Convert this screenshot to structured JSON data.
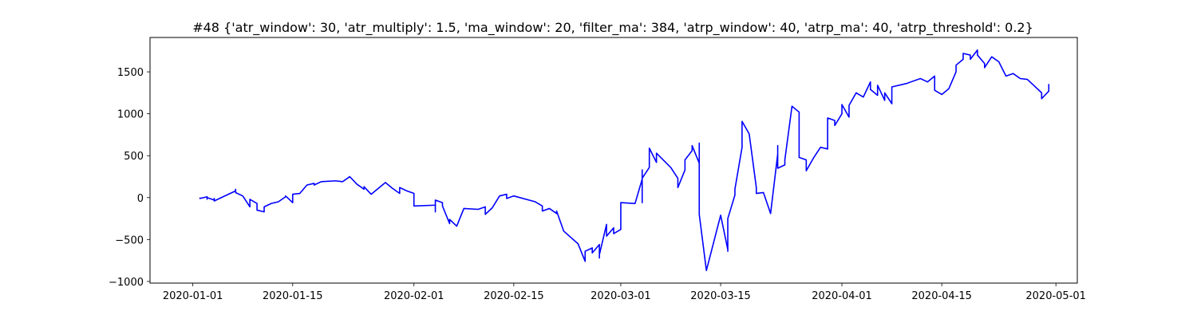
{
  "chart_data": {
    "type": "line",
    "title": "#48 {'atr_window': 30, 'atr_multiply': 1.5, 'ma_window': 20, 'filter_ma': 384, 'atrp_window': 40, 'atrp_ma': 40, 'atrp_threshold': 0.2}",
    "xlabel": "",
    "ylabel": "",
    "grid": false,
    "legend": "none",
    "xlim": [
      "2019-12-26",
      "2020-05-04"
    ],
    "ylim": [
      -1020,
      1910
    ],
    "x_tick_labels": [
      "2020-01-01",
      "2020-01-15",
      "2020-02-01",
      "2020-02-15",
      "2020-03-01",
      "2020-03-15",
      "2020-04-01",
      "2020-04-15",
      "2020-05-01"
    ],
    "y_ticks": [
      -1000,
      -500,
      0,
      500,
      1000,
      1500
    ],
    "y_tick_labels": [
      "−1000",
      "−500",
      "0",
      "500",
      "1000",
      "1500"
    ],
    "series": [
      {
        "color": "#0000ff",
        "points": [
          [
            "2020-01-02",
            0
          ],
          [
            "2020-01-02",
            -10
          ],
          [
            "2020-01-03",
            10
          ],
          [
            "2020-01-03",
            -20
          ],
          [
            "2020-01-03",
            0
          ],
          [
            "2020-01-04",
            -30
          ],
          [
            "2020-01-04",
            -10
          ],
          [
            "2020-01-04",
            -40
          ],
          [
            "2020-01-05",
            0
          ],
          [
            "2020-01-07",
            80
          ],
          [
            "2020-01-07",
            100
          ],
          [
            "2020-01-07",
            60
          ],
          [
            "2020-01-08",
            20
          ],
          [
            "2020-01-09",
            -110
          ],
          [
            "2020-01-09",
            -20
          ],
          [
            "2020-01-10",
            -70
          ],
          [
            "2020-01-10",
            -150
          ],
          [
            "2020-01-11",
            -170
          ],
          [
            "2020-01-11",
            -110
          ],
          [
            "2020-01-12",
            -70
          ],
          [
            "2020-01-13",
            -50
          ],
          [
            "2020-01-14",
            10
          ],
          [
            "2020-01-14",
            20
          ],
          [
            "2020-01-15",
            -60
          ],
          [
            "2020-01-15",
            40
          ],
          [
            "2020-01-16",
            50
          ],
          [
            "2020-01-17",
            150
          ],
          [
            "2020-01-18",
            170
          ],
          [
            "2020-01-18",
            150
          ],
          [
            "2020-01-19",
            190
          ],
          [
            "2020-01-21",
            200
          ],
          [
            "2020-01-22",
            190
          ],
          [
            "2020-01-23",
            250
          ],
          [
            "2020-01-24",
            160
          ],
          [
            "2020-01-25",
            100
          ],
          [
            "2020-01-25",
            130
          ],
          [
            "2020-01-26",
            40
          ],
          [
            "2020-01-28",
            180
          ],
          [
            "2020-01-29",
            110
          ],
          [
            "2020-01-30",
            50
          ],
          [
            "2020-01-30",
            120
          ],
          [
            "2020-01-31",
            80
          ],
          [
            "2020-02-01",
            50
          ],
          [
            "2020-02-01",
            -100
          ],
          [
            "2020-02-04",
            -90
          ],
          [
            "2020-02-04",
            -170
          ],
          [
            "2020-02-04",
            -30
          ],
          [
            "2020-02-05",
            -60
          ],
          [
            "2020-02-05",
            -100
          ],
          [
            "2020-02-06",
            -310
          ],
          [
            "2020-02-06",
            -260
          ],
          [
            "2020-02-07",
            -340
          ],
          [
            "2020-02-08",
            -130
          ],
          [
            "2020-02-10",
            -140
          ],
          [
            "2020-02-11",
            -110
          ],
          [
            "2020-02-11",
            -200
          ],
          [
            "2020-02-12",
            -120
          ],
          [
            "2020-02-13",
            20
          ],
          [
            "2020-02-14",
            40
          ],
          [
            "2020-02-14",
            -10
          ],
          [
            "2020-02-15",
            20
          ],
          [
            "2020-02-18",
            -50
          ],
          [
            "2020-02-19",
            -100
          ],
          [
            "2020-02-19",
            -160
          ],
          [
            "2020-02-20",
            -130
          ],
          [
            "2020-02-21",
            -190
          ],
          [
            "2020-02-21",
            -160
          ],
          [
            "2020-02-22",
            -400
          ],
          [
            "2020-02-24",
            -550
          ],
          [
            "2020-02-25",
            -760
          ],
          [
            "2020-02-25",
            -640
          ],
          [
            "2020-02-26",
            -600
          ],
          [
            "2020-02-26",
            -660
          ],
          [
            "2020-02-27",
            -560
          ],
          [
            "2020-02-27",
            -720
          ],
          [
            "2020-02-27",
            -680
          ],
          [
            "2020-02-28",
            -320
          ],
          [
            "2020-02-28",
            -460
          ],
          [
            "2020-02-29",
            -360
          ],
          [
            "2020-02-29",
            -430
          ],
          [
            "2020-03-01",
            -380
          ],
          [
            "2020-03-01",
            -60
          ],
          [
            "2020-03-03",
            -70
          ],
          [
            "2020-03-04",
            220
          ],
          [
            "2020-03-04",
            330
          ],
          [
            "2020-03-04",
            -60
          ],
          [
            "2020-03-04",
            230
          ],
          [
            "2020-03-05",
            360
          ],
          [
            "2020-03-05",
            380
          ],
          [
            "2020-03-05",
            590
          ],
          [
            "2020-03-06",
            420
          ],
          [
            "2020-03-06",
            530
          ],
          [
            "2020-03-08",
            360
          ],
          [
            "2020-03-09",
            230
          ],
          [
            "2020-03-09",
            120
          ],
          [
            "2020-03-10",
            330
          ],
          [
            "2020-03-10",
            450
          ],
          [
            "2020-03-11",
            560
          ],
          [
            "2020-03-11",
            620
          ],
          [
            "2020-03-12",
            410
          ],
          [
            "2020-03-12",
            560
          ],
          [
            "2020-03-12",
            650
          ],
          [
            "2020-03-12",
            -200
          ],
          [
            "2020-03-13",
            -870
          ],
          [
            "2020-03-15",
            -210
          ],
          [
            "2020-03-16",
            -620
          ],
          [
            "2020-03-16",
            -640
          ],
          [
            "2020-03-16",
            -250
          ],
          [
            "2020-03-17",
            30
          ],
          [
            "2020-03-17",
            100
          ],
          [
            "2020-03-18",
            600
          ],
          [
            "2020-03-18",
            910
          ],
          [
            "2020-03-19",
            760
          ],
          [
            "2020-03-20",
            120
          ],
          [
            "2020-03-20",
            50
          ],
          [
            "2020-03-21",
            60
          ],
          [
            "2020-03-22",
            -190
          ],
          [
            "2020-03-23",
            520
          ],
          [
            "2020-03-23",
            620
          ],
          [
            "2020-03-23",
            350
          ],
          [
            "2020-03-24",
            390
          ],
          [
            "2020-03-24",
            450
          ],
          [
            "2020-03-25",
            1090
          ],
          [
            "2020-03-26",
            1020
          ],
          [
            "2020-03-26",
            480
          ],
          [
            "2020-03-27",
            450
          ],
          [
            "2020-03-27",
            320
          ],
          [
            "2020-03-28",
            470
          ],
          [
            "2020-03-29",
            600
          ],
          [
            "2020-03-30",
            580
          ],
          [
            "2020-03-30",
            950
          ],
          [
            "2020-03-31",
            920
          ],
          [
            "2020-03-31",
            860
          ],
          [
            "2020-04-01",
            1000
          ],
          [
            "2020-04-01",
            1110
          ],
          [
            "2020-04-02",
            960
          ],
          [
            "2020-04-02",
            1100
          ],
          [
            "2020-04-03",
            1250
          ],
          [
            "2020-04-04",
            1200
          ],
          [
            "2020-04-05",
            1380
          ],
          [
            "2020-04-05",
            1290
          ],
          [
            "2020-04-06",
            1220
          ],
          [
            "2020-04-06",
            1340
          ],
          [
            "2020-04-07",
            1160
          ],
          [
            "2020-04-07",
            1250
          ],
          [
            "2020-04-08",
            1120
          ],
          [
            "2020-04-08",
            1320
          ],
          [
            "2020-04-10",
            1360
          ],
          [
            "2020-04-12",
            1420
          ],
          [
            "2020-04-13",
            1380
          ],
          [
            "2020-04-14",
            1450
          ],
          [
            "2020-04-14",
            1280
          ],
          [
            "2020-04-15",
            1230
          ],
          [
            "2020-04-16",
            1300
          ],
          [
            "2020-04-17",
            1500
          ],
          [
            "2020-04-17",
            1580
          ],
          [
            "2020-04-18",
            1650
          ],
          [
            "2020-04-18",
            1720
          ],
          [
            "2020-04-19",
            1700
          ],
          [
            "2020-04-19",
            1650
          ],
          [
            "2020-04-20",
            1760
          ],
          [
            "2020-04-20",
            1700
          ],
          [
            "2020-04-21",
            1600
          ],
          [
            "2020-04-21",
            1550
          ],
          [
            "2020-04-22",
            1680
          ],
          [
            "2020-04-23",
            1620
          ],
          [
            "2020-04-24",
            1450
          ],
          [
            "2020-04-25",
            1480
          ],
          [
            "2020-04-26",
            1420
          ],
          [
            "2020-04-27",
            1410
          ],
          [
            "2020-04-28",
            1330
          ],
          [
            "2020-04-29",
            1250
          ],
          [
            "2020-04-29",
            1180
          ],
          [
            "2020-04-30",
            1270
          ],
          [
            "2020-04-30",
            1350
          ],
          [
            "2020-04-30",
            1280
          ]
        ]
      }
    ]
  }
}
